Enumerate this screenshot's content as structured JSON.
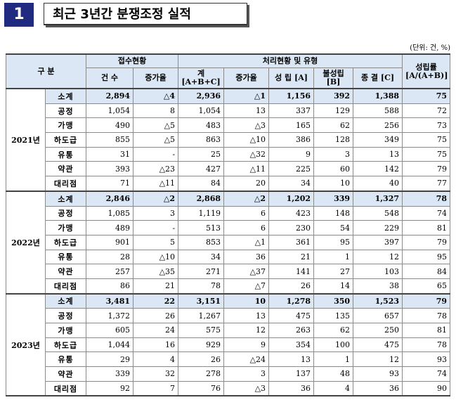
{
  "title": {
    "number": "1",
    "text": "최근 3년간 분쟁조정 실적"
  },
  "unit": "(단위: 건, %)",
  "header": {
    "category": "구 분",
    "group_receipt": "접수현황",
    "group_process": "처리현황 및 유형",
    "success_rate": "성립률 [A/(A+B)]",
    "count": "건 수",
    "growth": "증가율",
    "total": "계 [A+B+C]",
    "growth2": "증가율",
    "settled": "성 립 [A]",
    "unsettled": "불성립 [B]",
    "terminated": "종 결 [C]"
  },
  "years": [
    {
      "year": "2021년",
      "rows": [
        {
          "cat": "소계",
          "count": "2,894",
          "growth": "△4",
          "total": "2,936",
          "growth2": "△1",
          "settled": "1,156",
          "unsettled": "392",
          "terminated": "1,388",
          "rate": "75"
        },
        {
          "cat": "공정",
          "count": "1,054",
          "growth": "8",
          "total": "1,054",
          "growth2": "13",
          "settled": "337",
          "unsettled": "129",
          "terminated": "588",
          "rate": "72"
        },
        {
          "cat": "가맹",
          "count": "490",
          "growth": "△5",
          "total": "483",
          "growth2": "△3",
          "settled": "165",
          "unsettled": "62",
          "terminated": "256",
          "rate": "73"
        },
        {
          "cat": "하도급",
          "count": "855",
          "growth": "△5",
          "total": "863",
          "growth2": "△10",
          "settled": "386",
          "unsettled": "128",
          "terminated": "349",
          "rate": "75"
        },
        {
          "cat": "유통",
          "count": "31",
          "growth": "-",
          "total": "25",
          "growth2": "△32",
          "settled": "9",
          "unsettled": "3",
          "terminated": "13",
          "rate": "75"
        },
        {
          "cat": "약관",
          "count": "393",
          "growth": "△23",
          "total": "427",
          "growth2": "△11",
          "settled": "225",
          "unsettled": "60",
          "terminated": "142",
          "rate": "79"
        },
        {
          "cat": "대리점",
          "count": "71",
          "growth": "△11",
          "total": "84",
          "growth2": "20",
          "settled": "34",
          "unsettled": "10",
          "terminated": "40",
          "rate": "77"
        }
      ]
    },
    {
      "year": "2022년",
      "rows": [
        {
          "cat": "소계",
          "count": "2,846",
          "growth": "△2",
          "total": "2,868",
          "growth2": "△2",
          "settled": "1,202",
          "unsettled": "339",
          "terminated": "1,327",
          "rate": "78"
        },
        {
          "cat": "공정",
          "count": "1,085",
          "growth": "3",
          "total": "1,119",
          "growth2": "6",
          "settled": "423",
          "unsettled": "148",
          "terminated": "548",
          "rate": "74"
        },
        {
          "cat": "가맹",
          "count": "489",
          "growth": "-",
          "total": "513",
          "growth2": "6",
          "settled": "230",
          "unsettled": "54",
          "terminated": "229",
          "rate": "81"
        },
        {
          "cat": "하도급",
          "count": "901",
          "growth": "5",
          "total": "853",
          "growth2": "△1",
          "settled": "361",
          "unsettled": "95",
          "terminated": "397",
          "rate": "79"
        },
        {
          "cat": "유통",
          "count": "28",
          "growth": "△10",
          "total": "34",
          "growth2": "36",
          "settled": "21",
          "unsettled": "1",
          "terminated": "12",
          "rate": "95"
        },
        {
          "cat": "약관",
          "count": "257",
          "growth": "△35",
          "total": "271",
          "growth2": "△37",
          "settled": "141",
          "unsettled": "27",
          "terminated": "103",
          "rate": "84"
        },
        {
          "cat": "대리점",
          "count": "86",
          "growth": "21",
          "total": "78",
          "growth2": "△7",
          "settled": "26",
          "unsettled": "14",
          "terminated": "38",
          "rate": "65"
        }
      ]
    },
    {
      "year": "2023년",
      "rows": [
        {
          "cat": "소계",
          "count": "3,481",
          "growth": "22",
          "total": "3,151",
          "growth2": "10",
          "settled": "1,278",
          "unsettled": "350",
          "terminated": "1,523",
          "rate": "79"
        },
        {
          "cat": "공정",
          "count": "1,372",
          "growth": "26",
          "total": "1,267",
          "growth2": "13",
          "settled": "475",
          "unsettled": "135",
          "terminated": "657",
          "rate": "78"
        },
        {
          "cat": "가맹",
          "count": "605",
          "growth": "24",
          "total": "575",
          "growth2": "12",
          "settled": "263",
          "unsettled": "62",
          "terminated": "250",
          "rate": "81"
        },
        {
          "cat": "하도급",
          "count": "1,044",
          "growth": "16",
          "total": "929",
          "growth2": "9",
          "settled": "354",
          "unsettled": "100",
          "terminated": "475",
          "rate": "78"
        },
        {
          "cat": "유통",
          "count": "29",
          "growth": "4",
          "total": "26",
          "growth2": "△24",
          "settled": "13",
          "unsettled": "1",
          "terminated": "12",
          "rate": "93"
        },
        {
          "cat": "약관",
          "count": "339",
          "growth": "32",
          "total": "278",
          "growth2": "3",
          "settled": "137",
          "unsettled": "48",
          "terminated": "93",
          "rate": "74"
        },
        {
          "cat": "대리점",
          "count": "92",
          "growth": "7",
          "total": "76",
          "growth2": "△3",
          "settled": "36",
          "unsettled": "4",
          "terminated": "36",
          "rate": "90"
        }
      ]
    }
  ]
}
